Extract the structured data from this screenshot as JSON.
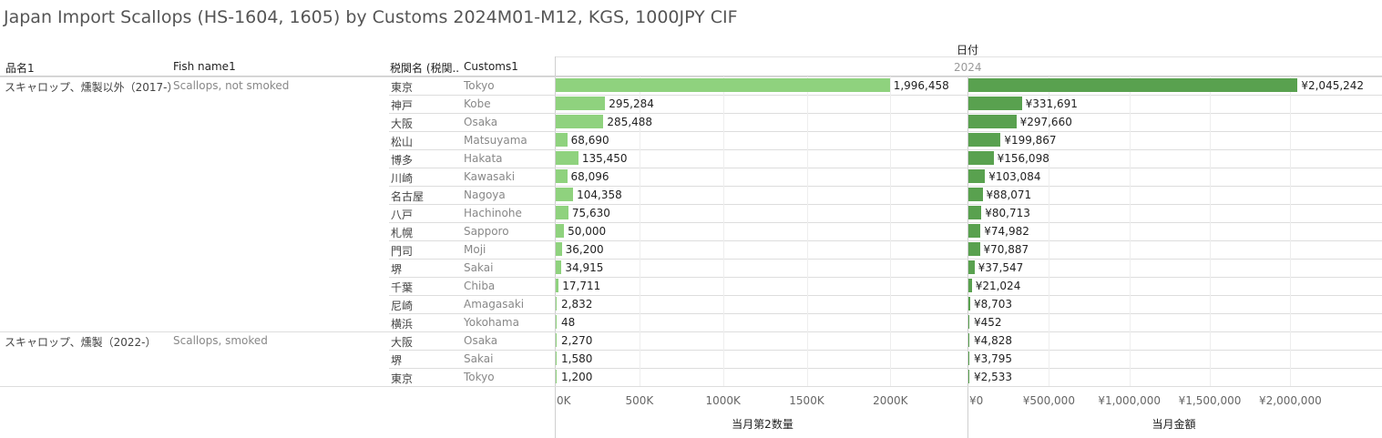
{
  "title": "Japan Import Scallops (HS-1604, 1605) by Customs 2024M01-M12, KGS, 1000JPY CIF",
  "headers": {
    "product_jp": "品名1",
    "fish_name": "Fish name1",
    "customs_jp": "税関名 (税関..",
    "customs_en": "Customs1",
    "date_label": "日付",
    "year": "2024"
  },
  "groups": [
    {
      "product_jp": "スキャロップ、燻製以外（2017-）",
      "fish_name": "Scallops, not smoked",
      "start_row": 0
    },
    {
      "product_jp": "スキャロップ、燻製（2022-）",
      "fish_name": "Scallops, smoked",
      "start_row": 14
    }
  ],
  "colors": {
    "quantity_bar": "#8fd27e",
    "amount_bar": "#59a14f"
  },
  "chart_data": {
    "type": "bar",
    "orientation": "horizontal",
    "categories": [
      {
        "customs_jp": "東京",
        "customs_en": "Tokyo"
      },
      {
        "customs_jp": "神戸",
        "customs_en": "Kobe"
      },
      {
        "customs_jp": "大阪",
        "customs_en": "Osaka"
      },
      {
        "customs_jp": "松山",
        "customs_en": "Matsuyama"
      },
      {
        "customs_jp": "博多",
        "customs_en": "Hakata"
      },
      {
        "customs_jp": "川崎",
        "customs_en": "Kawasaki"
      },
      {
        "customs_jp": "名古屋",
        "customs_en": "Nagoya"
      },
      {
        "customs_jp": "八戸",
        "customs_en": "Hachinohe"
      },
      {
        "customs_jp": "札幌",
        "customs_en": "Sapporo"
      },
      {
        "customs_jp": "門司",
        "customs_en": "Moji"
      },
      {
        "customs_jp": "堺",
        "customs_en": "Sakai"
      },
      {
        "customs_jp": "千葉",
        "customs_en": "Chiba"
      },
      {
        "customs_jp": "尼崎",
        "customs_en": "Amagasaki"
      },
      {
        "customs_jp": "横浜",
        "customs_en": "Yokohama"
      },
      {
        "customs_jp": "大阪",
        "customs_en": "Osaka"
      },
      {
        "customs_jp": "堺",
        "customs_en": "Sakai"
      },
      {
        "customs_jp": "東京",
        "customs_en": "Tokyo"
      }
    ],
    "series": [
      {
        "name": "当月第2数量",
        "values": [
          1996458,
          295284,
          285488,
          68690,
          135450,
          68096,
          104358,
          75630,
          50000,
          36200,
          34915,
          17711,
          2832,
          48,
          2270,
          1580,
          1200
        ],
        "labels": [
          "1,996,458",
          "295,284",
          "285,488",
          "68,690",
          "135,450",
          "68,096",
          "104,358",
          "75,630",
          "50,000",
          "36,200",
          "34,915",
          "17,711",
          "2,832",
          "48",
          "2,270",
          "1,580",
          "1,200"
        ],
        "xlim": [
          0,
          2450000
        ],
        "ticks": [
          0,
          500000,
          1000000,
          1500000,
          2000000
        ],
        "tick_labels": [
          "0K",
          "500K",
          "1000K",
          "1500K",
          "2000K"
        ],
        "xlabel": "当月第2数量"
      },
      {
        "name": "当月金額",
        "values": [
          2045242,
          331691,
          297660,
          199867,
          156098,
          103084,
          88071,
          80713,
          74982,
          70887,
          37547,
          21024,
          8703,
          452,
          4828,
          3795,
          2533
        ],
        "labels": [
          "¥2,045,242",
          "¥331,691",
          "¥297,660",
          "¥199,867",
          "¥156,098",
          "¥103,084",
          "¥88,071",
          "¥80,713",
          "¥74,982",
          "¥70,887",
          "¥37,547",
          "¥21,024",
          "¥8,703",
          "¥452",
          "¥4,828",
          "¥3,795",
          "¥2,533"
        ],
        "xlim": [
          0,
          2530000
        ],
        "ticks": [
          0,
          500000,
          1000000,
          1500000,
          2000000
        ],
        "tick_labels": [
          "¥0",
          "¥500,000",
          "¥1,000,000",
          "¥1,500,000",
          "¥2,000,000"
        ],
        "xlabel": "当月金額"
      }
    ],
    "grid": true
  }
}
